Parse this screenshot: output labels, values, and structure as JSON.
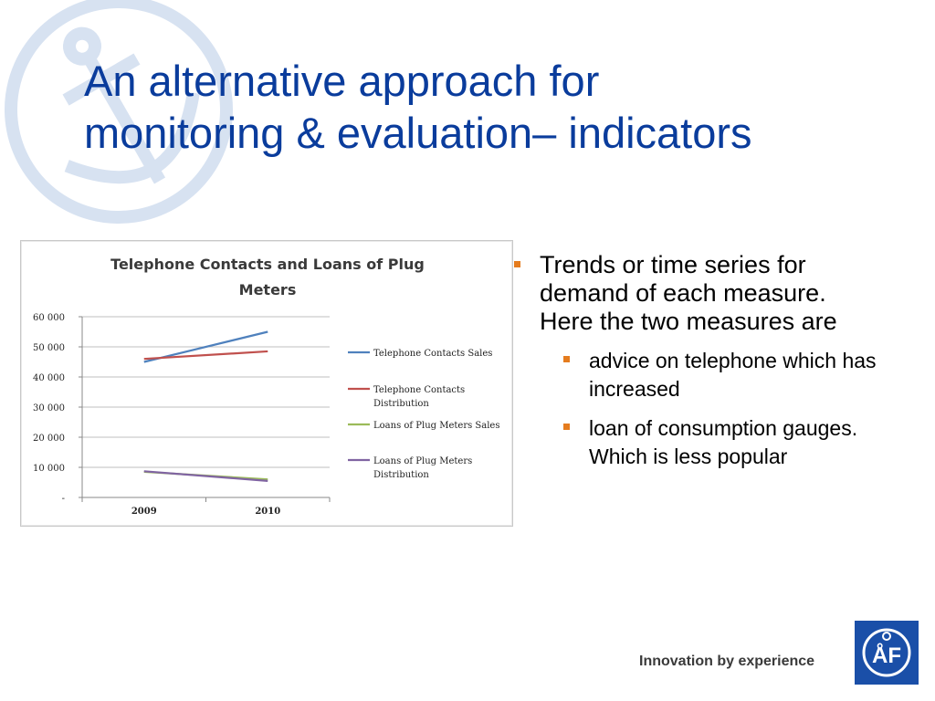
{
  "slide": {
    "title_line1": "An alternative approach for",
    "title_line2": "monitoring & evaluation– indicators",
    "tagline": "Innovation by experience",
    "logo_text": "ÅF"
  },
  "bullets": [
    {
      "level": 1,
      "text": "Trends or time series for demand of each measure. Here the two measures are"
    },
    {
      "level": 2,
      "text": "advice on telephone which has increased"
    },
    {
      "level": 2,
      "text": "loan of consumption gauges. Which is less popular"
    }
  ],
  "colors": {
    "title": "#0a3c9c",
    "bullet_marker": "#e57c1e",
    "logo": "#1a4fa8"
  },
  "icons": [
    "anchor-watermark-icon",
    "af-logo-icon",
    "bullet-square-icon"
  ],
  "chart_data": {
    "type": "line",
    "title_lines": [
      "Telephone Contacts and Loans of Plug",
      "Meters"
    ],
    "categories": [
      "2009",
      "2010"
    ],
    "ylim": [
      0,
      60000
    ],
    "yticks": [
      0,
      10000,
      20000,
      30000,
      40000,
      50000,
      60000
    ],
    "ytick_labels": [
      "-",
      "10 000",
      "20 000",
      "30 000",
      "40 000",
      "50 000",
      "60 000"
    ],
    "grid": true,
    "legend_position": "right",
    "series": [
      {
        "name": "Telephone Contacts Sales",
        "legend_lines": [
          "Telephone Contacts Sales"
        ],
        "color": "#4f81bd",
        "values": [
          45000,
          55000
        ]
      },
      {
        "name": "Telephone Contacts Distribution",
        "legend_lines": [
          "Telephone Contacts",
          "Distribution"
        ],
        "color": "#c0504d",
        "values": [
          46000,
          48500
        ]
      },
      {
        "name": "Loans of Plug Meters Sales",
        "legend_lines": [
          "Loans of Plug Meters Sales"
        ],
        "color": "#9bbb59",
        "values": [
          8500,
          6000
        ]
      },
      {
        "name": "Loans of Plug Meters Distribution",
        "legend_lines": [
          "Loans of Plug Meters",
          "Distribution"
        ],
        "color": "#8064a2",
        "values": [
          8700,
          5500
        ]
      }
    ]
  }
}
